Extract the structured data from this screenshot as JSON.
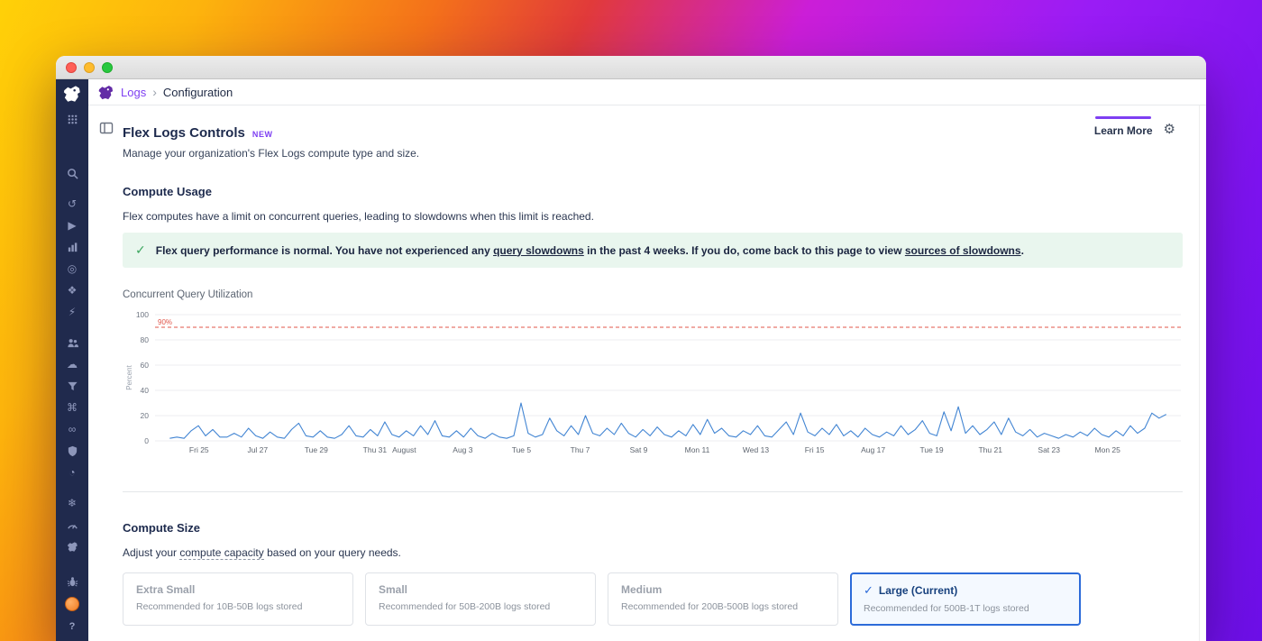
{
  "breadcrumb": {
    "product": "Logs",
    "separator": "›",
    "page": "Configuration"
  },
  "page": {
    "title": "Flex Logs Controls",
    "badge": "NEW",
    "subtitle": "Manage your organization's Flex Logs compute type and size.",
    "learn_more": "Learn More"
  },
  "icons": {
    "check": "✓",
    "gear": "⚙"
  },
  "colors": {
    "accent_purple": "#7e3ff2",
    "logo_purple": "#632ca6",
    "sidebar_navy": "#202a4d",
    "line_blue": "#4285d3",
    "threshold_red": "#e0564a",
    "success_green": "#3aa55d",
    "selected_blue": "#2c6bd9"
  },
  "compute_usage": {
    "heading": "Compute Usage",
    "description": "Flex computes have a limit on concurrent queries, leading to slowdowns when this limit is reached.",
    "banner": {
      "prefix": "Flex query performance is normal. You have not experienced any ",
      "link1": "query slowdowns",
      "middle": " in the past 4 weeks. If you do, come back to this page to view ",
      "link2": "sources of slowdowns",
      "suffix": "."
    },
    "chart_label": "Concurrent Query Utilization"
  },
  "chart_data": {
    "type": "line",
    "title": "Concurrent Query Utilization",
    "xlabel": "",
    "ylabel": "Percent",
    "ylim": [
      0,
      100
    ],
    "yticks": [
      0,
      20,
      40,
      60,
      80,
      100
    ],
    "grid": true,
    "threshold": {
      "value": 90,
      "label": "90%",
      "style": "dashed"
    },
    "x_range_days": [
      0,
      34
    ],
    "xticks": [
      {
        "label": "Fri 25",
        "day": 1
      },
      {
        "label": "Jul 27",
        "day": 3
      },
      {
        "label": "Tue 29",
        "day": 5
      },
      {
        "label": "Thu 31",
        "day": 7
      },
      {
        "label": "August",
        "day": 8
      },
      {
        "label": "Aug 3",
        "day": 10
      },
      {
        "label": "Tue 5",
        "day": 12
      },
      {
        "label": "Thu 7",
        "day": 14
      },
      {
        "label": "Sat 9",
        "day": 16
      },
      {
        "label": "Mon 11",
        "day": 18
      },
      {
        "label": "Wed 13",
        "day": 20
      },
      {
        "label": "Fri 15",
        "day": 22
      },
      {
        "label": "Aug 17",
        "day": 24
      },
      {
        "label": "Tue 19",
        "day": 26
      },
      {
        "label": "Thu 21",
        "day": 28
      },
      {
        "label": "Sat 23",
        "day": 30
      },
      {
        "label": "Mon 25",
        "day": 32
      }
    ],
    "series": [
      {
        "name": "concurrent query utilization",
        "values": [
          2,
          3,
          2,
          8,
          12,
          4,
          9,
          3,
          3,
          6,
          3,
          10,
          4,
          2,
          7,
          3,
          2,
          9,
          14,
          4,
          3,
          8,
          3,
          2,
          5,
          12,
          4,
          3,
          9,
          4,
          15,
          5,
          3,
          8,
          4,
          12,
          5,
          16,
          4,
          3,
          8,
          3,
          10,
          4,
          2,
          6,
          3,
          2,
          4,
          30,
          6,
          3,
          5,
          18,
          8,
          4,
          12,
          5,
          20,
          6,
          4,
          10,
          5,
          14,
          6,
          3,
          9,
          4,
          11,
          5,
          3,
          8,
          4,
          13,
          5,
          17,
          6,
          10,
          4,
          3,
          8,
          5,
          12,
          4,
          3,
          9,
          15,
          5,
          22,
          7,
          4,
          10,
          5,
          13,
          4,
          8,
          3,
          10,
          5,
          3,
          7,
          4,
          12,
          5,
          9,
          16,
          6,
          4,
          23,
          8,
          27,
          6,
          12,
          5,
          9,
          15,
          5,
          18,
          7,
          4,
          9,
          3,
          6,
          4,
          2,
          5,
          3,
          7,
          4,
          10,
          5,
          3,
          8,
          4,
          12,
          6,
          10,
          22,
          18,
          21
        ]
      }
    ]
  },
  "compute_size": {
    "heading": "Compute Size",
    "description_prefix": "Adjust your ",
    "description_term": "compute capacity",
    "description_suffix": " based on your query needs.",
    "options": [
      {
        "title": "Extra Small",
        "subtitle": "Recommended for 10B-50B logs stored",
        "state": "dim"
      },
      {
        "title": "Small",
        "subtitle": "Recommended for 50B-200B logs stored",
        "state": "dim"
      },
      {
        "title": "Medium",
        "subtitle": "Recommended for 200B-500B logs stored",
        "state": "dim"
      },
      {
        "title": "Large (Current)",
        "subtitle": "Recommended for 500B-1T logs stored",
        "state": "selected"
      }
    ]
  },
  "sidebar": {
    "groups": [
      [
        {
          "name": "apps-grid",
          "shape": "grid"
        }
      ],
      [
        {
          "name": "search",
          "shape": "search"
        }
      ],
      [
        {
          "name": "watchdog",
          "glyph": "↺"
        },
        {
          "name": "apm",
          "glyph": "▶"
        },
        {
          "name": "infrastructure",
          "shape": "bars"
        },
        {
          "name": "monitors",
          "glyph": "◎"
        },
        {
          "name": "integrations",
          "glyph": "❖"
        },
        {
          "name": "events",
          "glyph": "⚡"
        }
      ],
      [
        {
          "name": "rum",
          "shape": "people"
        },
        {
          "name": "cloud-security",
          "glyph": "☁"
        },
        {
          "name": "log-pipelines",
          "shape": "funnel"
        },
        {
          "name": "ci-cd",
          "glyph": "⌘"
        },
        {
          "name": "service-map",
          "glyph": "∞"
        },
        {
          "name": "app-security",
          "shape": "shield"
        },
        {
          "name": "metrics",
          "glyph": "◔"
        }
      ],
      [
        {
          "name": "organization-settings",
          "glyph": "❄"
        },
        {
          "name": "profiling",
          "shape": "gauge"
        },
        {
          "name": "logs-product",
          "shape": "dog"
        }
      ],
      [
        {
          "name": "debug",
          "shape": "bug"
        },
        {
          "name": "user-avatar",
          "cls": "avatar"
        },
        {
          "name": "help",
          "glyph": "?",
          "cls": "help"
        }
      ]
    ]
  }
}
